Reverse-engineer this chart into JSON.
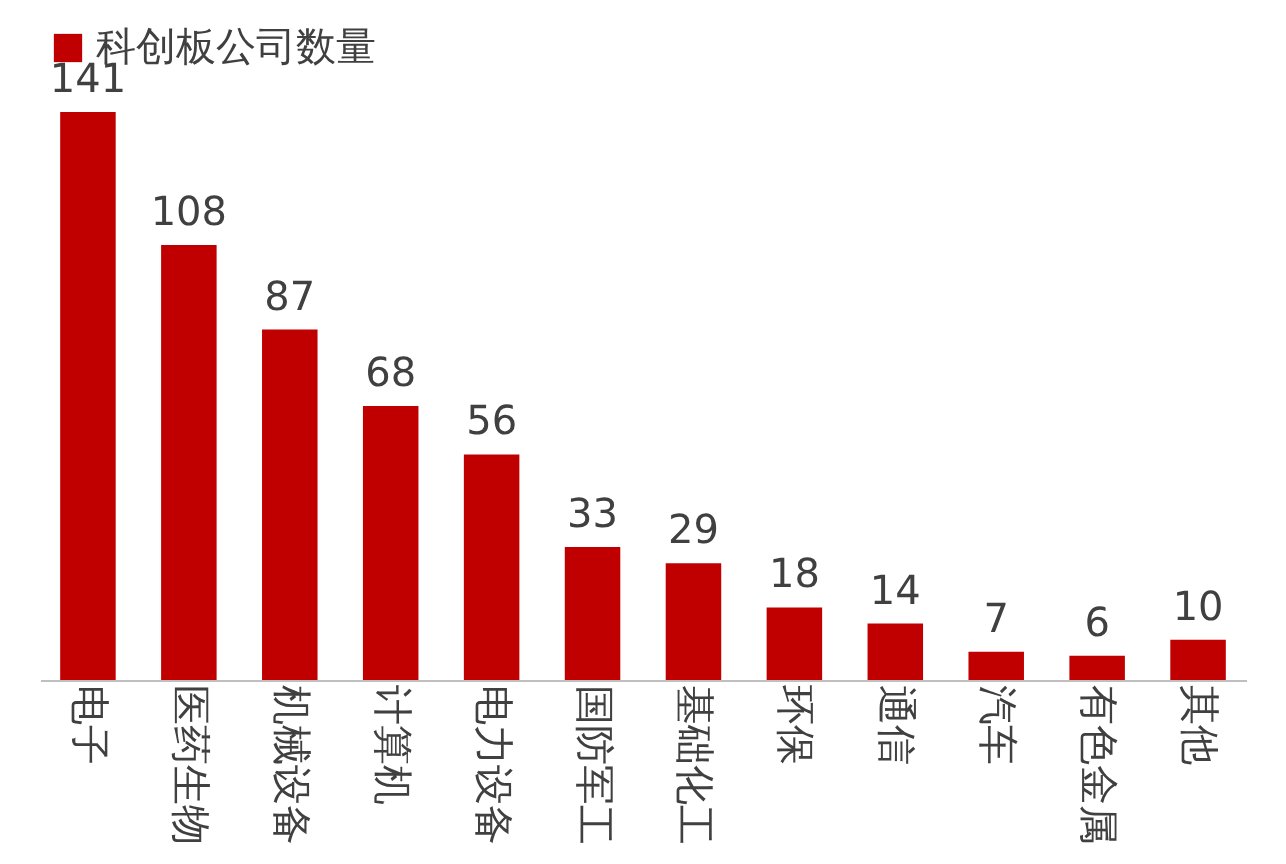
{
  "chart_data": {
    "type": "bar",
    "categories": [
      "电子",
      "医药生物",
      "机械设备",
      "计算机",
      "电力设备",
      "国防军工",
      "基础化工",
      "环保",
      "通信",
      "汽车",
      "有色金属",
      "其他"
    ],
    "series": [
      {
        "name": "科创板公司数量",
        "color": "#c00000",
        "values": [
          141,
          108,
          87,
          68,
          56,
          33,
          29,
          18,
          14,
          7,
          6,
          10
        ]
      }
    ],
    "data_labels": true,
    "legend": "top",
    "grid": false
  }
}
